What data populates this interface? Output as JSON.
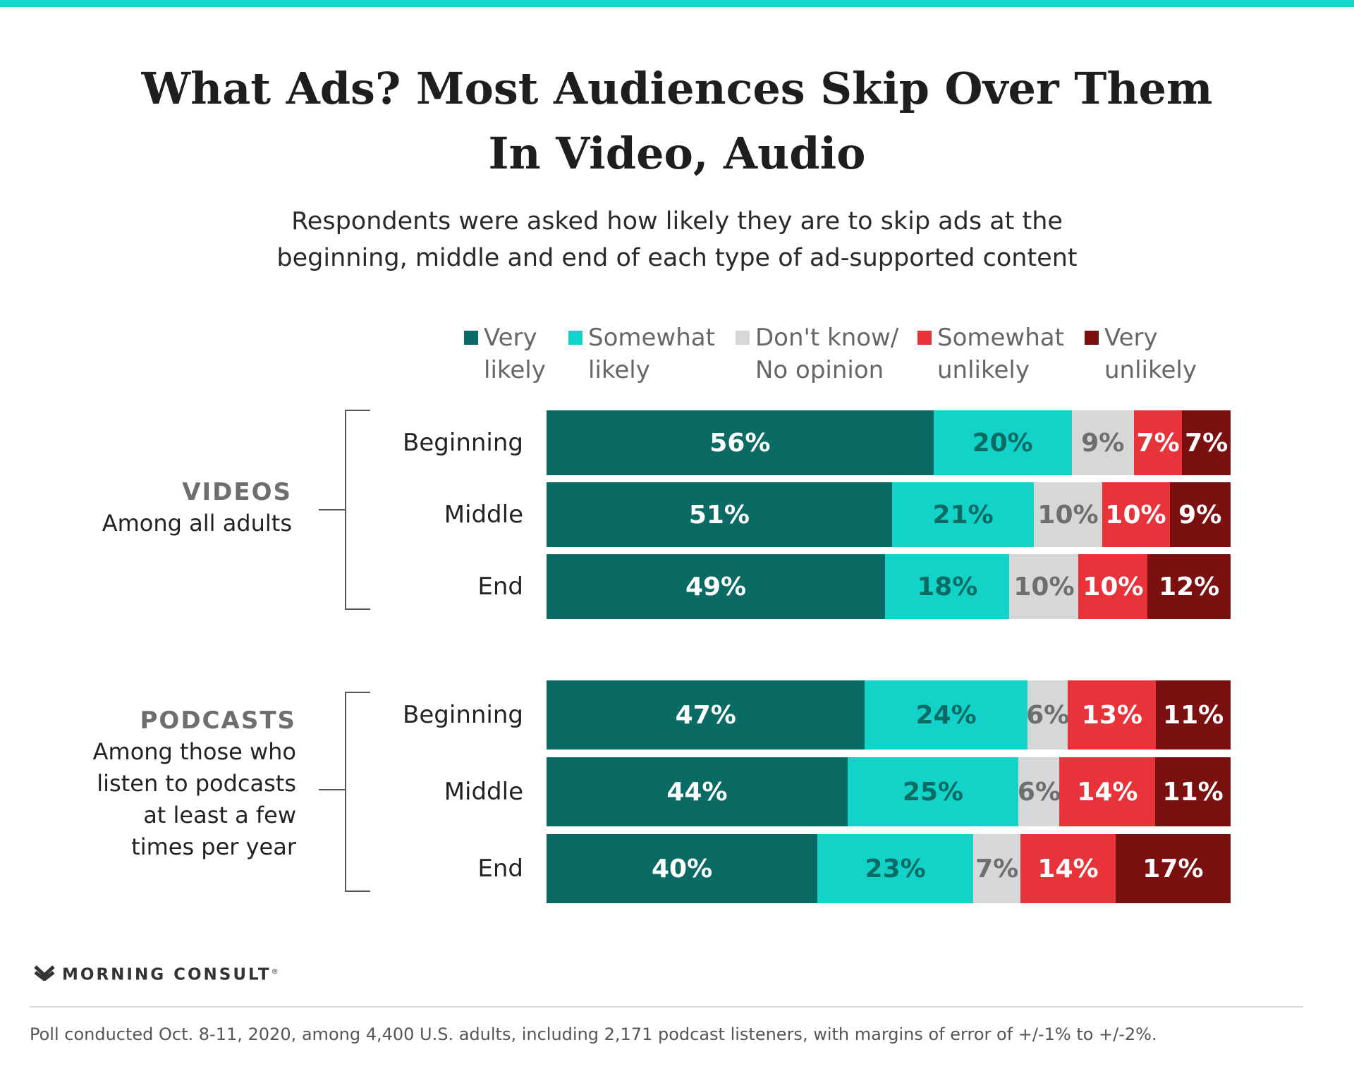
{
  "header": {
    "title_line1": "What Ads? Most Audiences Skip Over Them",
    "title_line2": "In Video, Audio",
    "subtitle_line1": "Respondents were asked how likely they are to skip ads at the",
    "subtitle_line2": "beginning, middle and end of each type of ad-supported content"
  },
  "legend": [
    {
      "line1": "Very",
      "line2": "likely",
      "color": "#0a6b65"
    },
    {
      "line1": "Somewhat",
      "line2": "likely",
      "color": "#13d3c9"
    },
    {
      "line1": "Don't know/",
      "line2": "No opinion",
      "color": "#d7d7d7"
    },
    {
      "line1": "Somewhat",
      "line2": "unlikely",
      "color": "#e8333b"
    },
    {
      "line1": "Very",
      "line2": "unlikely",
      "color": "#7a1010"
    }
  ],
  "groups": [
    {
      "name": "VIDEOS",
      "description": "Among all adults"
    },
    {
      "name": "PODCASTS",
      "description": "Among those who\nlisten to podcasts\nat least a few\ntimes per year"
    }
  ],
  "chart_data": {
    "type": "bar",
    "stacked": true,
    "orientation": "horizontal",
    "unit": "%",
    "series_names": [
      "Very likely",
      "Somewhat likely",
      "Don't know/ No opinion",
      "Somewhat unlikely",
      "Very unlikely"
    ],
    "colors": [
      "#0a6b65",
      "#13d3c9",
      "#d7d7d7",
      "#e8333b",
      "#7a1010"
    ],
    "label_colors": [
      "#ffffff",
      "#0a6b65",
      "#6e6e6e",
      "#ffffff",
      "#ffffff"
    ],
    "groups": [
      {
        "name": "VIDEOS",
        "rows": [
          {
            "label": "Beginning",
            "values": [
              56,
              20,
              9,
              7,
              7
            ]
          },
          {
            "label": "Middle",
            "values": [
              51,
              21,
              10,
              10,
              9
            ]
          },
          {
            "label": "End",
            "values": [
              49,
              18,
              10,
              10,
              12
            ]
          }
        ]
      },
      {
        "name": "PODCASTS",
        "rows": [
          {
            "label": "Beginning",
            "values": [
              47,
              24,
              6,
              13,
              11
            ]
          },
          {
            "label": "Middle",
            "values": [
              44,
              25,
              6,
              14,
              11
            ]
          },
          {
            "label": "End",
            "values": [
              40,
              23,
              7,
              14,
              17
            ]
          }
        ]
      }
    ]
  },
  "branding": {
    "name": "MORNING CONSULT",
    "mark": "®"
  },
  "footnote": "Poll conducted Oct. 8-11, 2020, among 4,400 U.S. adults, including 2,171 podcast listeners, with margins of error of +/-1% to +/-2%."
}
